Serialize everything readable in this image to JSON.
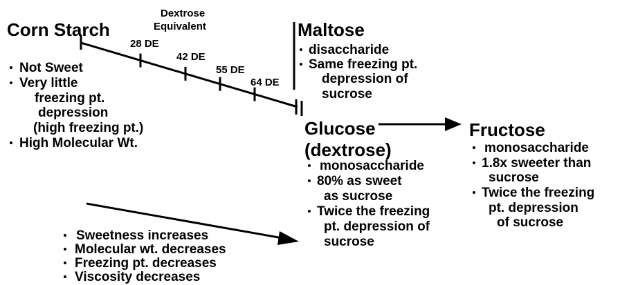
{
  "corn_starch": {
    "title": "Corn Starch",
    "lines": [
      "Not Sweet",
      "Very little",
      "freezing pt.",
      "depression",
      "(high freezing pt.)",
      "High Molecular Wt."
    ]
  },
  "axis_label": [
    "Dextrose",
    "Equivalent"
  ],
  "de_ticks": [
    "28 DE",
    "42 DE",
    "55 DE",
    "64 DE"
  ],
  "maltose": {
    "title": "Maltose",
    "lines": [
      "disaccharide",
      "Same freezing pt.",
      "depression of",
      "sucrose"
    ]
  },
  "glucose": {
    "title": "Glucose",
    "subtitle": "(dextrose)",
    "lines": [
      "monosaccharide",
      "80% as sweet",
      "as sucrose",
      "Twice the freezing",
      "pt. depression of",
      "sucrose"
    ]
  },
  "fructose": {
    "title": "Fructose",
    "lines": [
      "monosaccharide",
      "1.8x sweeter than",
      "sucrose",
      "Twice the freezing",
      "pt. depression",
      "of sucrose"
    ]
  },
  "trends": [
    "Sweetness increases",
    "Molecular wt. decreases",
    "Freezing pt. decreases",
    "Viscosity decreases"
  ]
}
